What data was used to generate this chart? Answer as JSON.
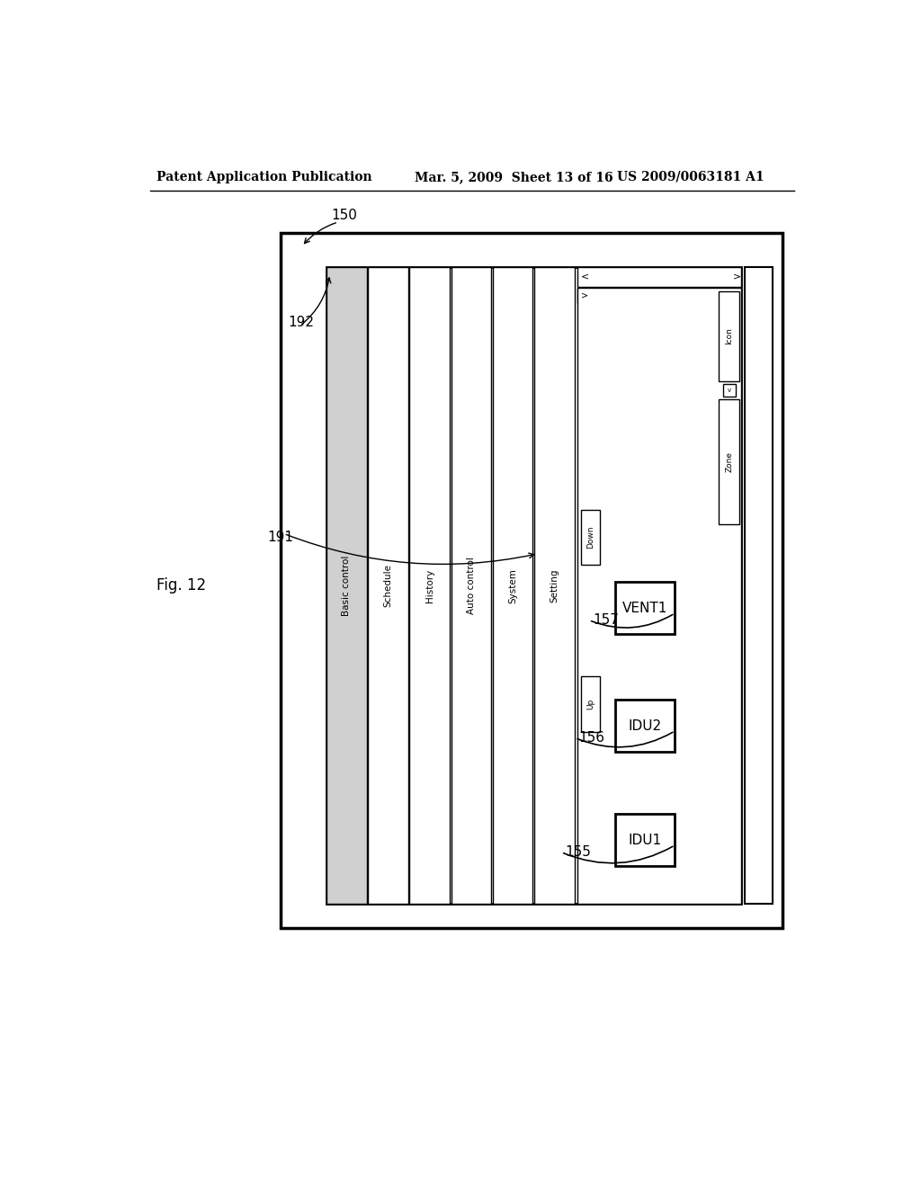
{
  "bg_color": "#ffffff",
  "header_left": "Patent Application Publication",
  "header_mid": "Mar. 5, 2009  Sheet 13 of 16",
  "header_right": "US 2009/0063181 A1",
  "fig_label": "Fig. 12"
}
